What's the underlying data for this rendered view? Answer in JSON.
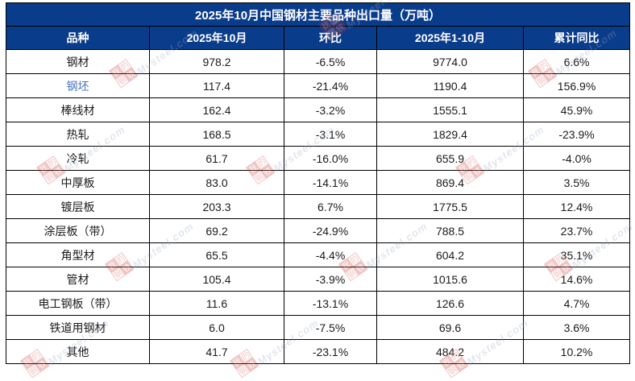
{
  "chart_data": {
    "type": "table",
    "title": "2025年10月中国钢材主要品种出口量（万吨）",
    "columns": [
      "品种",
      "2025年10月",
      "环比",
      "2025年1-10月",
      "累计同比"
    ],
    "rows": [
      {
        "name": "钢材",
        "oct": "978.2",
        "mom": "-6.5%",
        "ytd": "9774.0",
        "yoy": "6.6%",
        "highlight": false
      },
      {
        "name": "钢坯",
        "oct": "117.4",
        "mom": "-21.4%",
        "ytd": "1190.4",
        "yoy": "156.9%",
        "highlight": true
      },
      {
        "name": "棒线材",
        "oct": "162.4",
        "mom": "-3.2%",
        "ytd": "1555.1",
        "yoy": "45.9%",
        "highlight": false
      },
      {
        "name": "热轧",
        "oct": "168.5",
        "mom": "-3.1%",
        "ytd": "1829.4",
        "yoy": "-23.9%",
        "highlight": false
      },
      {
        "name": "冷轧",
        "oct": "61.7",
        "mom": "-16.0%",
        "ytd": "655.9",
        "yoy": "-4.0%",
        "highlight": false
      },
      {
        "name": "中厚板",
        "oct": "83.0",
        "mom": "-14.1%",
        "ytd": "869.4",
        "yoy": "3.5%",
        "highlight": false
      },
      {
        "name": "镀层板",
        "oct": "203.3",
        "mom": "6.7%",
        "ytd": "1775.5",
        "yoy": "12.4%",
        "highlight": false
      },
      {
        "name": "涂层板（带）",
        "oct": "69.2",
        "mom": "-24.9%",
        "ytd": "788.5",
        "yoy": "23.7%",
        "highlight": false
      },
      {
        "name": "角型材",
        "oct": "65.5",
        "mom": "-4.4%",
        "ytd": "604.2",
        "yoy": "35.1%",
        "highlight": false
      },
      {
        "name": "管材",
        "oct": "105.4",
        "mom": "-3.9%",
        "ytd": "1015.6",
        "yoy": "14.6%",
        "highlight": false
      },
      {
        "name": "电工钢板（带）",
        "oct": "11.6",
        "mom": "-13.1%",
        "ytd": "126.6",
        "yoy": "4.7%",
        "highlight": false
      },
      {
        "name": "铁道用钢材",
        "oct": "6.0",
        "mom": "-7.5%",
        "ytd": "69.6",
        "yoy": "3.6%",
        "highlight": false
      },
      {
        "name": "其他",
        "oct": "41.7",
        "mom": "-23.1%",
        "ytd": "484.2",
        "yoy": "10.2%",
        "highlight": false
      }
    ]
  },
  "watermark": {
    "logo_chars": "我的钢铁",
    "brand": "Mysteel.com"
  },
  "colors": {
    "header_bg": "#0a3c8c",
    "header_text": "#ffffff",
    "link_blue": "#4472c4",
    "border": "#000000",
    "watermark_red": "#cc2a2a",
    "watermark_gray": "#9aa9c4"
  }
}
